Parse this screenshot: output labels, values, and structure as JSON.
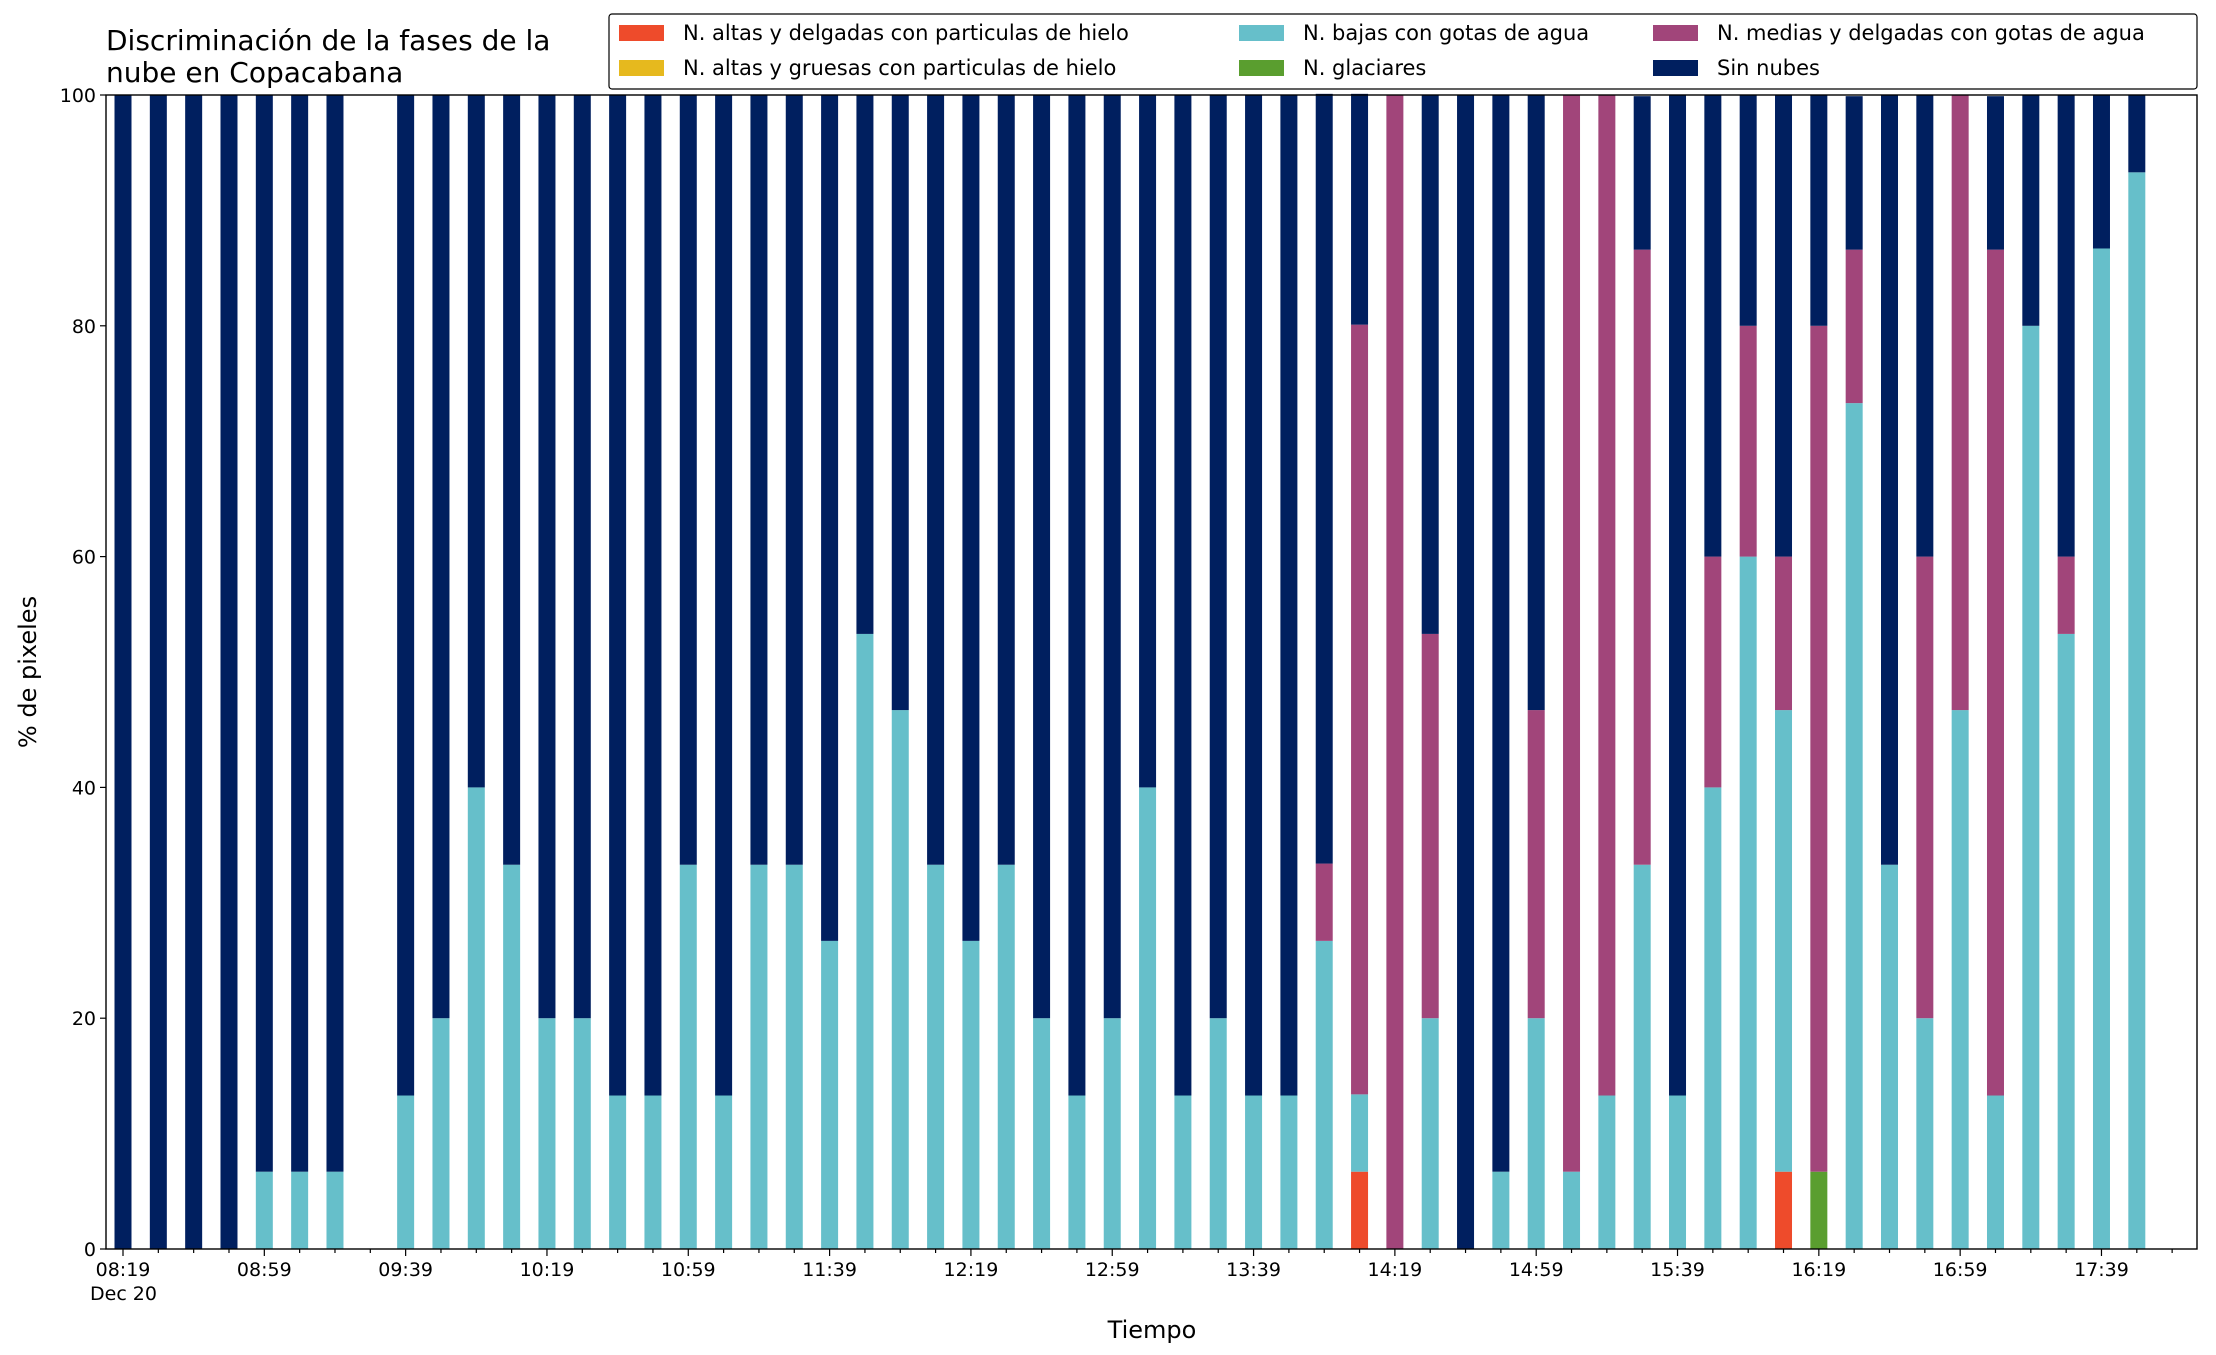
{
  "chart_data": {
    "type": "stacked_bar",
    "title": "Discriminación de la fases de la\nnube en Copacabana",
    "x_label": "Tiempo",
    "y_label": "% de pixeles",
    "categories": [
      "08:19\nDec 20",
      null,
      null,
      null,
      "08:59",
      null,
      null,
      null,
      "09:39",
      null,
      null,
      null,
      "10:19",
      null,
      null,
      null,
      "10:59",
      null,
      null,
      null,
      "11:39",
      null,
      null,
      null,
      "12:19",
      null,
      null,
      null,
      "12:59",
      null,
      null,
      null,
      "13:39",
      null,
      null,
      null,
      "14:19",
      null,
      null,
      null,
      "14:59",
      null,
      null,
      null,
      "15:39",
      null,
      null,
      null,
      "16:19",
      null,
      null,
      null,
      "16:59",
      null,
      null,
      null,
      "17:39",
      null
    ],
    "ylim": [
      0,
      100
    ],
    "yticks": [
      0,
      20,
      40,
      60,
      80,
      100
    ],
    "series": [
      {
        "name": "N. altas y delgadas con particulas de hielo",
        "color": "#ee4b2b",
        "values": [
          0,
          0,
          0,
          0,
          0,
          0,
          0,
          null,
          0,
          0,
          0,
          0,
          0,
          0,
          0,
          0,
          0,
          0,
          0,
          0,
          0,
          0,
          0,
          0,
          0,
          0,
          0,
          0,
          0,
          0,
          0,
          0,
          0,
          0,
          0,
          6.7,
          0,
          0,
          0,
          0,
          0,
          0,
          0,
          0,
          0,
          0,
          0,
          6.7,
          0,
          0,
          0,
          0,
          0,
          0,
          0,
          0,
          0,
          0
        ]
      },
      {
        "name": "N. altas y gruesas con particulas de hielo",
        "color": "#e6b91e",
        "values": [
          0,
          0,
          0,
          0,
          0,
          0,
          0,
          null,
          0,
          0,
          0,
          0,
          0,
          0,
          0,
          0,
          0,
          0,
          0,
          0,
          0,
          0,
          0,
          0,
          0,
          0,
          0,
          0,
          0,
          0,
          0,
          0,
          0,
          0,
          0,
          0,
          0,
          0,
          0,
          0,
          0,
          0,
          0,
          0,
          0,
          0,
          0,
          0,
          0,
          0,
          0,
          0,
          0,
          0,
          0,
          0,
          0,
          0
        ]
      },
      {
        "name": "N. bajas con gotas de agua",
        "color": "#66bfca",
        "values": [
          0,
          0,
          0,
          0,
          6.7,
          6.7,
          6.7,
          null,
          13.3,
          20,
          40,
          33.3,
          20,
          20,
          13.3,
          13.3,
          33.3,
          13.3,
          33.3,
          33.3,
          26.7,
          53.3,
          46.7,
          33.3,
          26.7,
          33.3,
          20,
          13.3,
          20,
          40,
          13.3,
          20,
          13.3,
          13.3,
          26.7,
          6.7,
          0,
          20,
          0,
          6.7,
          20,
          6.7,
          13.3,
          33.3,
          13.3,
          40,
          60,
          40,
          0,
          73.3,
          33.3,
          20,
          46.7,
          13.3,
          80,
          53.3,
          86.7,
          93.3
        ]
      },
      {
        "name": "N. glaciares",
        "color": "#5a9e2f",
        "values": [
          0,
          0,
          0,
          0,
          0,
          0,
          0,
          null,
          0,
          0,
          0,
          0,
          0,
          0,
          0,
          0,
          0,
          0,
          0,
          0,
          0,
          0,
          0,
          0,
          0,
          0,
          0,
          0,
          0,
          0,
          0,
          0,
          0,
          0,
          0,
          0,
          0,
          0,
          0,
          0,
          0,
          0,
          0,
          0,
          0,
          0,
          0,
          0,
          6.7,
          0,
          0,
          0,
          0,
          0,
          0,
          0,
          0,
          0
        ]
      },
      {
        "name": "N. medias y delgadas con gotas de agua",
        "color": "#a1457a",
        "values": [
          0,
          0,
          0,
          0,
          0,
          0,
          0,
          null,
          0,
          0,
          0,
          0,
          0,
          0,
          0,
          0,
          0,
          0,
          0,
          0,
          0,
          0,
          0,
          0,
          0,
          0,
          0,
          0,
          0,
          0,
          0,
          0,
          0,
          0,
          6.7,
          66.7,
          100,
          33.3,
          0,
          0,
          26.7,
          93.3,
          86.7,
          53.3,
          0,
          20,
          20,
          13.3,
          73.3,
          13.3,
          0,
          40,
          53.3,
          73.3,
          0,
          6.7,
          0,
          0
        ]
      },
      {
        "name": "Sin nubes",
        "color": "#001f5f",
        "values": [
          100,
          100,
          100,
          100,
          93.3,
          93.3,
          93.3,
          null,
          86.7,
          80,
          60,
          66.7,
          80,
          80,
          86.7,
          86.7,
          66.7,
          86.7,
          66.7,
          66.7,
          73.3,
          46.7,
          53.3,
          66.7,
          73.3,
          66.7,
          80,
          86.7,
          80,
          60,
          86.7,
          80,
          86.7,
          86.7,
          66.7,
          20,
          0,
          46.7,
          100,
          93.3,
          53.3,
          0,
          0,
          13.3,
          86.7,
          40,
          20,
          40,
          20,
          13.3,
          66.7,
          40,
          0,
          13.3,
          20,
          40,
          13.3,
          6.7
        ]
      }
    ]
  }
}
